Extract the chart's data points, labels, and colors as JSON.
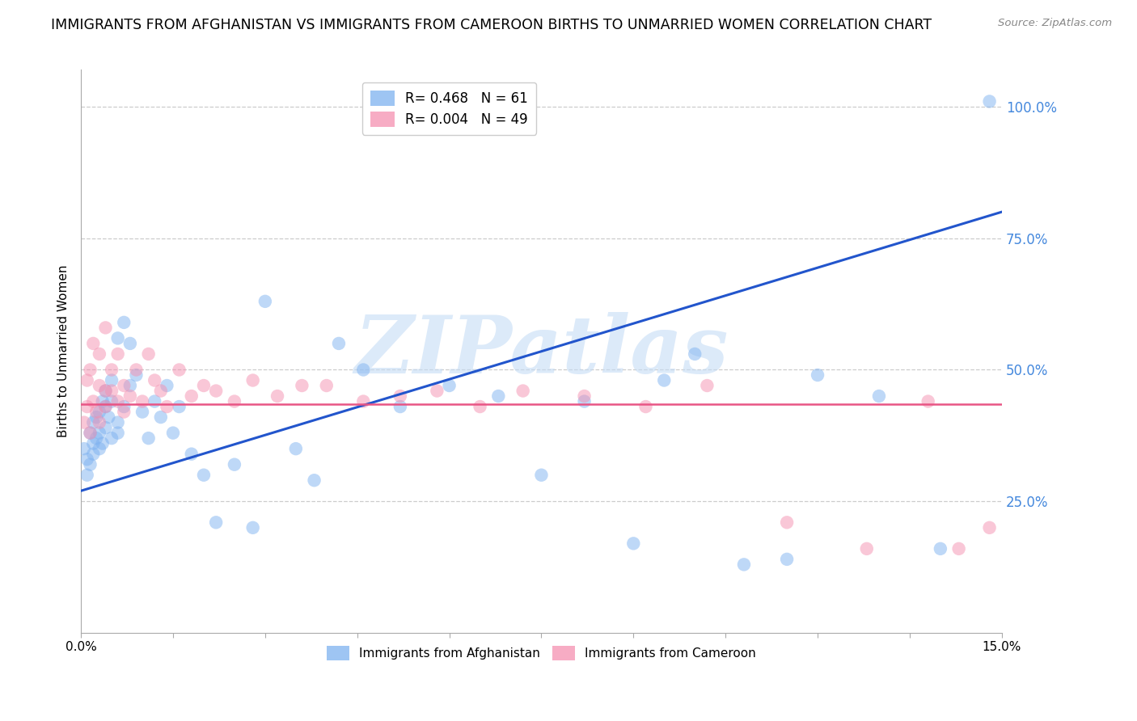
{
  "title": "IMMIGRANTS FROM AFGHANISTAN VS IMMIGRANTS FROM CAMEROON BIRTHS TO UNMARRIED WOMEN CORRELATION CHART",
  "source": "Source: ZipAtlas.com",
  "ylabel": "Births to Unmarried Women",
  "legend_entry1": "R= 0.468   N = 61",
  "legend_entry2": "R= 0.004   N = 49",
  "legend_label1": "Immigrants from Afghanistan",
  "legend_label2": "Immigrants from Cameroon",
  "color_afghanistan": "#7EB2F0",
  "color_cameroon": "#F590B0",
  "color_trendline_afghanistan": "#2255CC",
  "color_trendline_cameroon": "#E85585",
  "watermark": "ZIPatlas",
  "watermark_color": "#C5DCF5",
  "title_fontsize": 12.5,
  "axis_label_fontsize": 11,
  "right_label_color": "#4488DD",
  "background_color": "#FFFFFF",
  "afghanistan_x": [
    0.0005,
    0.001,
    0.001,
    0.0015,
    0.0015,
    0.002,
    0.002,
    0.002,
    0.0025,
    0.0025,
    0.003,
    0.003,
    0.003,
    0.0035,
    0.0035,
    0.004,
    0.004,
    0.004,
    0.0045,
    0.005,
    0.005,
    0.005,
    0.006,
    0.006,
    0.006,
    0.007,
    0.007,
    0.008,
    0.008,
    0.009,
    0.01,
    0.011,
    0.012,
    0.013,
    0.014,
    0.015,
    0.016,
    0.018,
    0.02,
    0.022,
    0.025,
    0.028,
    0.03,
    0.035,
    0.038,
    0.042,
    0.046,
    0.052,
    0.06,
    0.068,
    0.075,
    0.082,
    0.09,
    0.095,
    0.1,
    0.108,
    0.115,
    0.12,
    0.13,
    0.14,
    0.148
  ],
  "afghanistan_y": [
    0.35,
    0.3,
    0.33,
    0.32,
    0.38,
    0.36,
    0.34,
    0.4,
    0.37,
    0.41,
    0.35,
    0.38,
    0.42,
    0.36,
    0.44,
    0.39,
    0.43,
    0.46,
    0.41,
    0.37,
    0.44,
    0.48,
    0.38,
    0.4,
    0.56,
    0.43,
    0.59,
    0.47,
    0.55,
    0.49,
    0.42,
    0.37,
    0.44,
    0.41,
    0.47,
    0.38,
    0.43,
    0.34,
    0.3,
    0.21,
    0.32,
    0.2,
    0.63,
    0.35,
    0.29,
    0.55,
    0.5,
    0.43,
    0.47,
    0.45,
    0.3,
    0.44,
    0.17,
    0.48,
    0.53,
    0.13,
    0.14,
    0.49,
    0.45,
    0.16,
    1.01
  ],
  "cameroon_x": [
    0.0005,
    0.001,
    0.001,
    0.0015,
    0.0015,
    0.002,
    0.002,
    0.0025,
    0.003,
    0.003,
    0.003,
    0.004,
    0.004,
    0.004,
    0.005,
    0.005,
    0.006,
    0.006,
    0.007,
    0.007,
    0.008,
    0.009,
    0.01,
    0.011,
    0.012,
    0.013,
    0.014,
    0.016,
    0.018,
    0.02,
    0.022,
    0.025,
    0.028,
    0.032,
    0.036,
    0.04,
    0.046,
    0.052,
    0.058,
    0.065,
    0.072,
    0.082,
    0.092,
    0.102,
    0.115,
    0.128,
    0.138,
    0.143,
    0.148
  ],
  "cameroon_y": [
    0.4,
    0.43,
    0.48,
    0.38,
    0.5,
    0.55,
    0.44,
    0.42,
    0.47,
    0.53,
    0.4,
    0.58,
    0.46,
    0.43,
    0.5,
    0.46,
    0.44,
    0.53,
    0.47,
    0.42,
    0.45,
    0.5,
    0.44,
    0.53,
    0.48,
    0.46,
    0.43,
    0.5,
    0.45,
    0.47,
    0.46,
    0.44,
    0.48,
    0.45,
    0.47,
    0.47,
    0.44,
    0.45,
    0.46,
    0.43,
    0.46,
    0.45,
    0.43,
    0.47,
    0.21,
    0.16,
    0.44,
    0.16,
    0.2
  ],
  "xmin": 0.0,
  "xmax": 0.15,
  "ymin": 0.0,
  "ymax": 1.07,
  "grid_color": "#CCCCCC",
  "grid_yticks": [
    0.25,
    0.5,
    0.75,
    1.0
  ],
  "trendline_af_x0": 0.0,
  "trendline_af_y0": 0.27,
  "trendline_af_x1": 0.15,
  "trendline_af_y1": 0.8,
  "trendline_cm_y": 0.435
}
